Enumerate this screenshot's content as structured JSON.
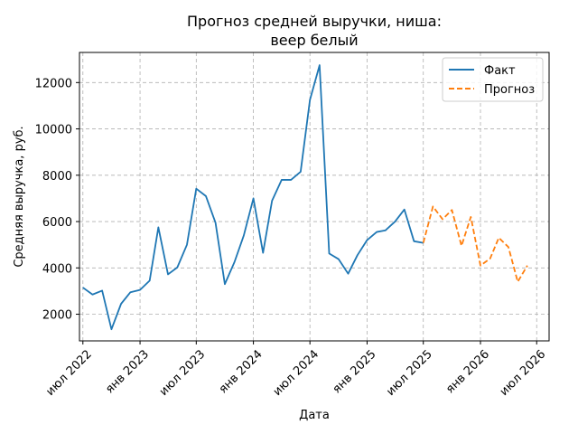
{
  "chart_data": {
    "type": "line",
    "title_line1": "Прогноз средней выручки, ниша:",
    "title_line2": "веер белый",
    "xlabel": "Дата",
    "ylabel": "Средняя выручка, руб.",
    "grid": true,
    "legend_position": "top-right",
    "x_start": "2022-06-20",
    "x_end": "2026-08-10",
    "ylim": [
      850,
      13300
    ],
    "y_ticks": [
      2000,
      4000,
      6000,
      8000,
      10000,
      12000
    ],
    "x_ticks": [
      {
        "date": "2022-07-01",
        "label": "июл 2022"
      },
      {
        "date": "2023-01-01",
        "label": "янв 2023"
      },
      {
        "date": "2023-07-01",
        "label": "июл 2023"
      },
      {
        "date": "2024-01-01",
        "label": "янв 2024"
      },
      {
        "date": "2024-07-01",
        "label": "июл 2024"
      },
      {
        "date": "2025-01-01",
        "label": "янв 2025"
      },
      {
        "date": "2025-07-01",
        "label": "июл 2025"
      },
      {
        "date": "2026-01-01",
        "label": "янв 2026"
      },
      {
        "date": "2026-07-01",
        "label": "июл 2026"
      }
    ],
    "series": [
      {
        "name": "Факт",
        "color": "#1f77b4",
        "style": "solid",
        "points": [
          [
            "2022-07-01",
            3150
          ],
          [
            "2022-08-01",
            2850
          ],
          [
            "2022-09-01",
            3020
          ],
          [
            "2022-10-01",
            1350
          ],
          [
            "2022-11-01",
            2450
          ],
          [
            "2022-12-01",
            2950
          ],
          [
            "2023-01-01",
            3050
          ],
          [
            "2023-02-01",
            3450
          ],
          [
            "2023-03-01",
            5750
          ],
          [
            "2023-04-01",
            3720
          ],
          [
            "2023-05-01",
            4020
          ],
          [
            "2023-06-01",
            5000
          ],
          [
            "2023-07-01",
            7420
          ],
          [
            "2023-08-01",
            7100
          ],
          [
            "2023-09-01",
            5950
          ],
          [
            "2023-10-01",
            3300
          ],
          [
            "2023-11-01",
            4250
          ],
          [
            "2023-12-01",
            5400
          ],
          [
            "2024-01-01",
            7000
          ],
          [
            "2024-02-01",
            4650
          ],
          [
            "2024-03-01",
            6900
          ],
          [
            "2024-04-01",
            7800
          ],
          [
            "2024-05-01",
            7800
          ],
          [
            "2024-06-01",
            8150
          ],
          [
            "2024-07-01",
            11250
          ],
          [
            "2024-08-01",
            12750
          ],
          [
            "2024-09-01",
            4620
          ],
          [
            "2024-10-01",
            4380
          ],
          [
            "2024-11-01",
            3750
          ],
          [
            "2024-12-01",
            4550
          ],
          [
            "2025-01-01",
            5200
          ],
          [
            "2025-02-01",
            5550
          ],
          [
            "2025-03-01",
            5620
          ],
          [
            "2025-04-01",
            6000
          ],
          [
            "2025-05-01",
            6520
          ],
          [
            "2025-06-01",
            5150
          ],
          [
            "2025-07-01",
            5080
          ]
        ]
      },
      {
        "name": "Прогноз",
        "color": "#ff7f0e",
        "style": "dashed",
        "points": [
          [
            "2025-07-01",
            5080
          ],
          [
            "2025-08-01",
            6650
          ],
          [
            "2025-09-01",
            6100
          ],
          [
            "2025-10-01",
            6500
          ],
          [
            "2025-11-01",
            4950
          ],
          [
            "2025-12-01",
            6200
          ],
          [
            "2026-01-01",
            4100
          ],
          [
            "2026-02-01",
            4400
          ],
          [
            "2026-03-01",
            5300
          ],
          [
            "2026-04-01",
            4900
          ],
          [
            "2026-05-01",
            3400
          ],
          [
            "2026-06-01",
            4100
          ]
        ]
      }
    ]
  }
}
